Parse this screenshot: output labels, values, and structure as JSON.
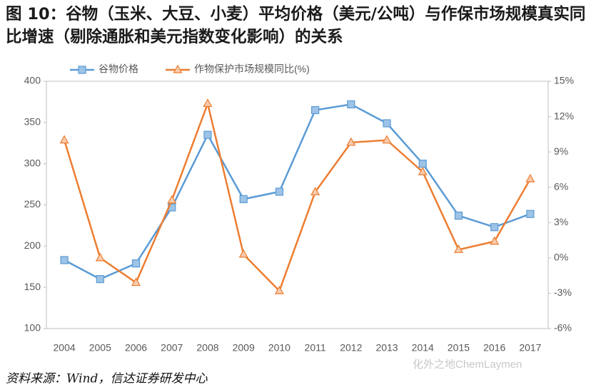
{
  "chart_data": {
    "type": "line",
    "title": "图 10：谷物（玉米、大豆、小麦）平均价格（美元/公吨）与作保市场规模真实同比增速（剔除通胀和美元指数变化影响）的关系",
    "categories": [
      "2004",
      "2005",
      "2006",
      "2007",
      "2008",
      "2009",
      "2010",
      "2011",
      "2012",
      "2013",
      "2014",
      "2015",
      "2016",
      "2017"
    ],
    "series": [
      {
        "name": "谷物价格",
        "color": "#5b9bd5",
        "marker": "square",
        "values": [
          183,
          160,
          179,
          247,
          335,
          257,
          266,
          365,
          372,
          349,
          300,
          237,
          223,
          239
        ]
      },
      {
        "name": "作物保护市场规模同比(%)",
        "color": "#ed7d31",
        "marker": "triangle",
        "axis": "y2",
        "values": [
          10.0,
          0.0,
          -2.1,
          4.9,
          13.1,
          0.3,
          -2.8,
          5.6,
          9.8,
          10.0,
          7.3,
          0.7,
          1.4,
          6.7
        ]
      }
    ],
    "ylim": [
      100,
      400
    ],
    "yticks": [
      100,
      150,
      200,
      250,
      300,
      350,
      400
    ],
    "y2lim": [
      -6,
      15
    ],
    "y2ticks": [
      {
        "value": -6,
        "label": "-6%"
      },
      {
        "value": -3,
        "label": "-3%"
      },
      {
        "value": 0,
        "label": "0%"
      },
      {
        "value": 3,
        "label": "3%"
      },
      {
        "value": 6,
        "label": "6%"
      },
      {
        "value": 9,
        "label": "9%"
      },
      {
        "value": 12,
        "label": "12%"
      },
      {
        "value": 15,
        "label": "15%"
      }
    ],
    "grid": false,
    "legend": "top",
    "source": "资料来源：Wind，信达证券研发中心",
    "watermark": "化外之地ChemLaymen"
  }
}
